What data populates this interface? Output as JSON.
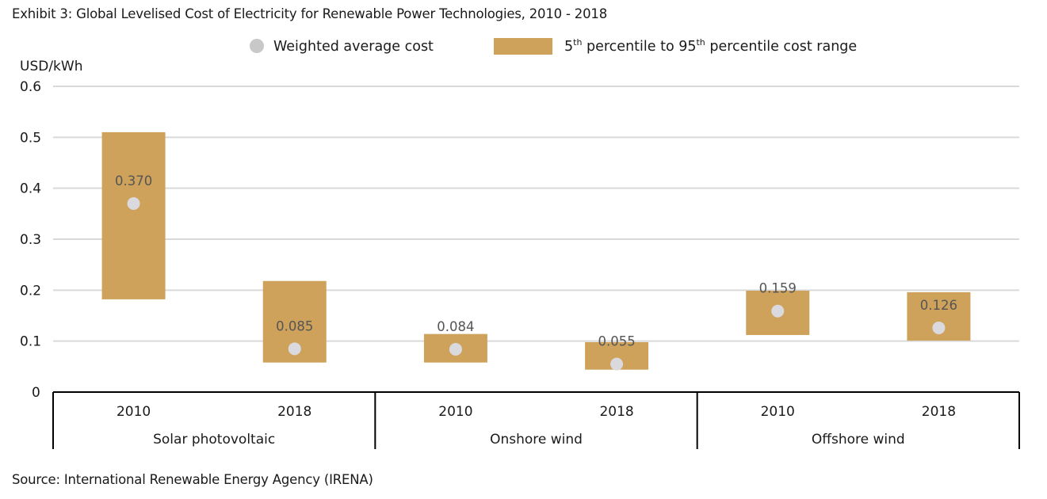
{
  "title": "Exhibit 3: Global Levelised Cost of Electricity for Renewable Power Technologies, 2010 - 2018",
  "source": "Source: International Renewable Energy Agency (IRENA)",
  "colors": {
    "range_bar": "#CFA25B",
    "avg_dot": "#D9D9DE",
    "legend_dot": "#C8C8C8",
    "grid": "#D9D9D9",
    "value_label": "#555555"
  },
  "legend": {
    "avg": "Weighted average cost",
    "range_pre": "5",
    "range_sup1": "th",
    "range_mid": " percentile to 95",
    "range_sup2": "th",
    "range_post": " percentile cost range"
  },
  "chart_data": {
    "type": "bar",
    "subtype": "floating range with point marker",
    "title": "Global Levelised Cost of Electricity for Renewable Power Technologies, 2010 - 2018",
    "ylabel": "USD/kWh",
    "xlabel": "",
    "ylim": [
      0,
      0.6
    ],
    "yticks": [
      0,
      0.1,
      0.2,
      0.3,
      0.4,
      0.5,
      0.6
    ],
    "ytick_labels": [
      "0",
      "0.1",
      "0.2",
      "0.3",
      "0.4",
      "0.5",
      "0.6"
    ],
    "grid": true,
    "legend_position": "top-center",
    "groups": [
      "Solar photovoltaic",
      "Onshore wind",
      "Offshore wind"
    ],
    "categories": [
      "2010",
      "2018",
      "2010",
      "2018",
      "2010",
      "2018"
    ],
    "series": [
      {
        "name": "5th percentile to 95th percentile cost range",
        "low": [
          0.182,
          0.058,
          0.058,
          0.044,
          0.112,
          0.101
        ],
        "high": [
          0.51,
          0.218,
          0.114,
          0.098,
          0.199,
          0.196
        ]
      },
      {
        "name": "Weighted average cost",
        "values": [
          0.37,
          0.085,
          0.084,
          0.055,
          0.159,
          0.126
        ],
        "labels": [
          "0.370",
          "0.085",
          "0.084",
          "0.055",
          "0.159",
          "0.126"
        ]
      }
    ]
  }
}
